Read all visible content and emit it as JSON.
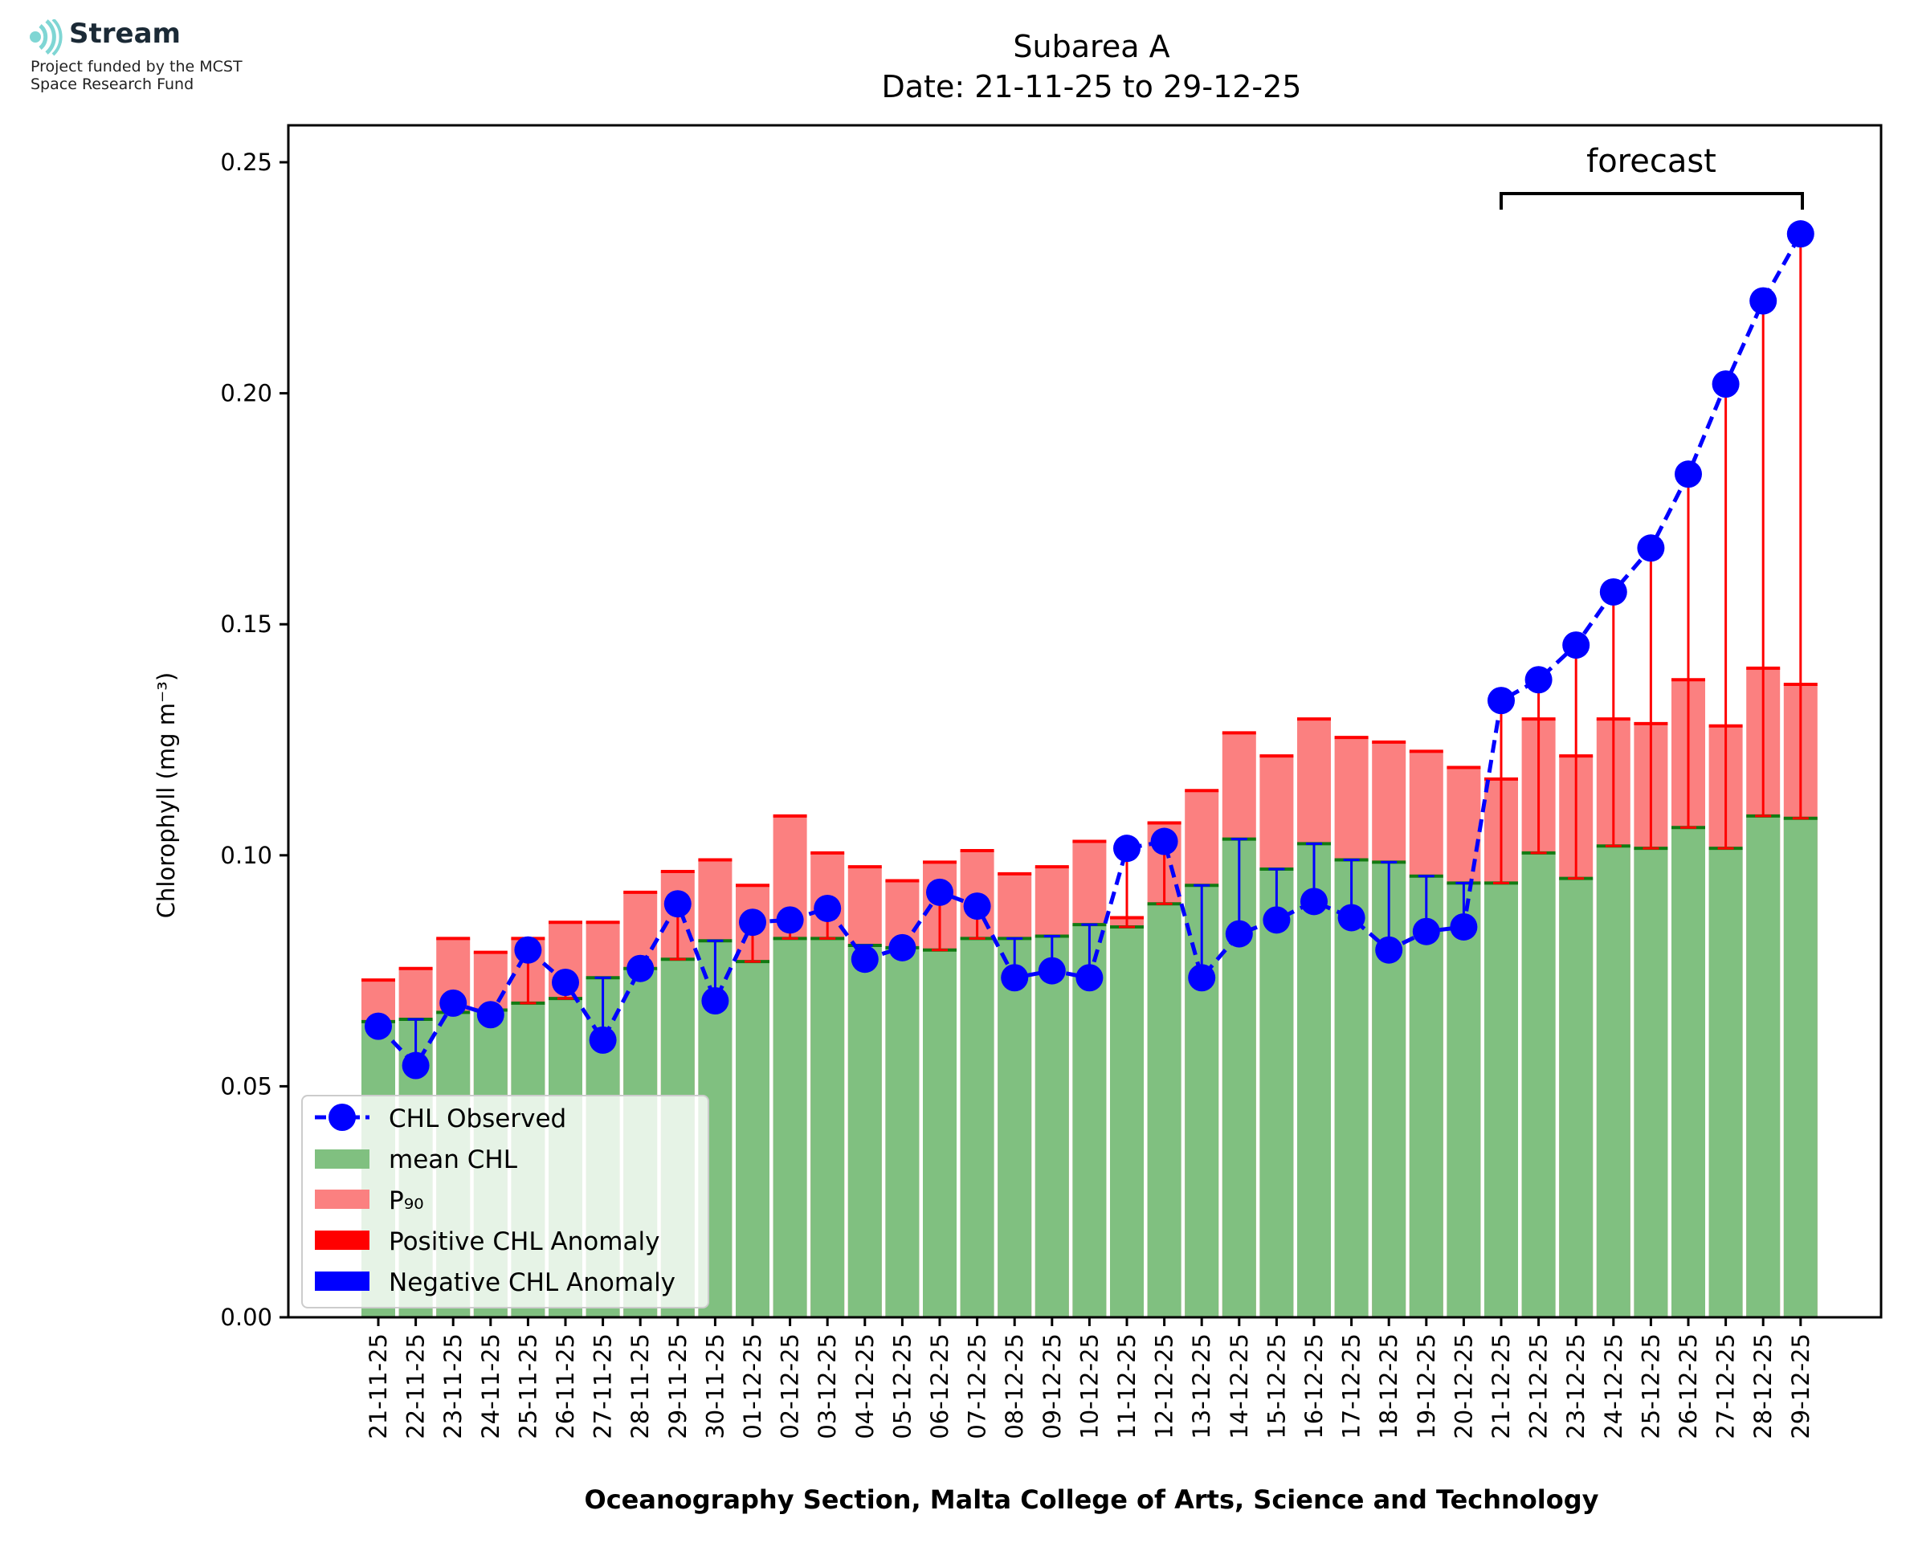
{
  "logo": {
    "name": "Stream",
    "funding_line1": "Project funded by the MCST",
    "funding_line2": "Space Research Fund"
  },
  "chart_data": {
    "type": "bar",
    "title": "Subarea A",
    "subtitle": "Date: 21-11-25 to 29-12-25",
    "xlabel": "Oceanography Section, Malta College of Arts, Science and Technology",
    "ylabel": "Chlorophyll (mg m⁻³)",
    "ylim": [
      0,
      0.258
    ],
    "yticks": [
      "0.00",
      "0.05",
      "0.10",
      "0.15",
      "0.20",
      "0.25"
    ],
    "grid": false,
    "legend_position": "lower-left",
    "annotation": {
      "text": "forecast",
      "start": "21-12-25",
      "end": "29-12-25"
    },
    "colors": {
      "mean": "#80c080",
      "mean_edge": "#127a12",
      "p90": "#fb8080",
      "p90_edge": "#ff0000",
      "observed": "#0000ff",
      "positive_anomaly": "#ff0000",
      "negative_anomaly": "#0000ff"
    },
    "categories": [
      "21-11-25",
      "22-11-25",
      "23-11-25",
      "24-11-25",
      "25-11-25",
      "26-11-25",
      "27-11-25",
      "28-11-25",
      "29-11-25",
      "30-11-25",
      "01-12-25",
      "02-12-25",
      "03-12-25",
      "04-12-25",
      "05-12-25",
      "06-12-25",
      "07-12-25",
      "08-12-25",
      "09-12-25",
      "10-12-25",
      "11-12-25",
      "12-12-25",
      "13-12-25",
      "14-12-25",
      "15-12-25",
      "16-12-25",
      "17-12-25",
      "18-12-25",
      "19-12-25",
      "20-12-25",
      "21-12-25",
      "22-12-25",
      "23-12-25",
      "24-12-25",
      "25-12-25",
      "26-12-25",
      "27-12-25",
      "28-12-25",
      "29-12-25"
    ],
    "series": [
      {
        "name": "CHL Observed",
        "style": "dashed line with circle markers",
        "values": [
          0.063,
          0.0545,
          0.068,
          0.0655,
          0.0795,
          0.0725,
          0.06,
          0.0755,
          0.0895,
          0.0685,
          0.0855,
          0.086,
          0.0885,
          0.0775,
          0.08,
          0.092,
          0.089,
          0.0735,
          0.075,
          0.0735,
          0.1015,
          0.103,
          0.0735,
          0.083,
          0.086,
          0.09,
          0.0865,
          0.0795,
          0.0835,
          0.0845,
          0.1335,
          0.138,
          0.1455,
          0.157,
          0.1665,
          0.1825,
          0.202,
          0.22,
          0.2345
        ]
      },
      {
        "name": "mean CHL",
        "values": [
          0.064,
          0.0645,
          0.066,
          0.0665,
          0.068,
          0.069,
          0.0735,
          0.0755,
          0.0775,
          0.0815,
          0.077,
          0.082,
          0.082,
          0.0805,
          0.08,
          0.0795,
          0.082,
          0.082,
          0.0825,
          0.085,
          0.0845,
          0.0895,
          0.0935,
          0.1035,
          0.097,
          0.1025,
          0.099,
          0.0985,
          0.0955,
          0.094,
          0.094,
          0.1005,
          0.095,
          0.102,
          0.1015,
          0.106,
          0.1015,
          0.1085,
          0.108
        ]
      },
      {
        "name": "P₉₀",
        "values": [
          0.073,
          0.0755,
          0.082,
          0.079,
          0.082,
          0.0855,
          0.0855,
          0.092,
          0.0965,
          0.099,
          0.0935,
          0.1085,
          0.1005,
          0.0975,
          0.0945,
          0.0985,
          0.101,
          0.096,
          0.0975,
          0.103,
          0.0865,
          0.107,
          0.114,
          0.1265,
          0.1215,
          0.1295,
          0.1255,
          0.1245,
          0.1225,
          0.119,
          0.1165,
          0.1295,
          0.1215,
          0.1295,
          0.1285,
          0.138,
          0.128,
          0.1405,
          0.137
        ]
      },
      {
        "name": "Positive CHL Anomaly",
        "description": "vertical line from mean CHL up to observed when observed > mean"
      },
      {
        "name": "Negative CHL Anomaly",
        "description": "vertical line from mean CHL down to observed when observed < mean"
      }
    ]
  }
}
